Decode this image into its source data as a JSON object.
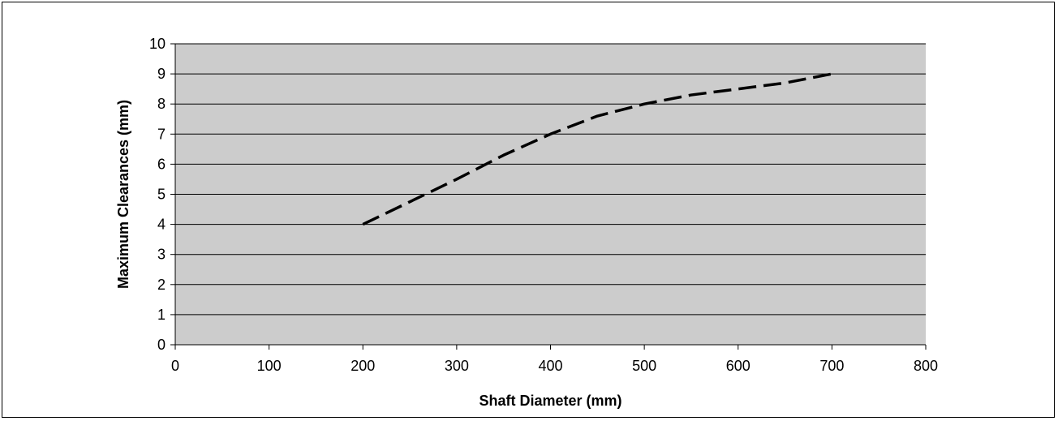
{
  "chart_data": {
    "type": "line",
    "title": "",
    "xlabel": "Shaft Diameter (mm)",
    "ylabel": "Maximum Clearances (mm)",
    "xlim": [
      0,
      800
    ],
    "ylim": [
      0,
      10
    ],
    "x_ticks": [
      0,
      100,
      200,
      300,
      400,
      500,
      600,
      700,
      800
    ],
    "y_ticks": [
      0,
      1,
      2,
      3,
      4,
      5,
      6,
      7,
      8,
      9,
      10
    ],
    "grid": "horizontal",
    "legend": "none",
    "series": [
      {
        "line_style": "dashed",
        "x": [
          200,
          250,
          300,
          350,
          400,
          450,
          500,
          550,
          600,
          650,
          700
        ],
        "y": [
          4.0,
          4.75,
          5.5,
          6.3,
          7.0,
          7.6,
          8.0,
          8.3,
          8.5,
          8.7,
          9.0
        ]
      }
    ]
  },
  "colors": {
    "plot_background": "#cccccc",
    "gridline": "#000000",
    "line": "#000000",
    "frame": "#000000"
  }
}
